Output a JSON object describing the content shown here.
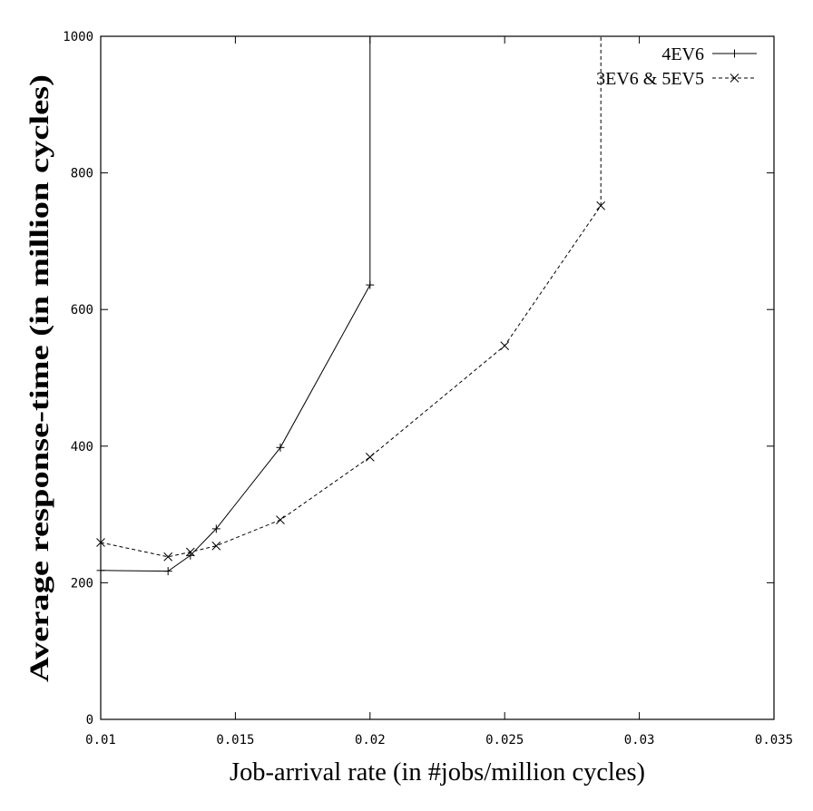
{
  "chart_data": {
    "type": "line",
    "title": "",
    "xlabel": "Job-arrival rate (in #jobs/million cycles)",
    "ylabel": "Average response-time (in million cycles)",
    "xlim": [
      0.01,
      0.035
    ],
    "ylim": [
      0,
      1000
    ],
    "xticks": [
      0.01,
      0.015,
      0.02,
      0.025,
      0.03,
      0.035
    ],
    "xtick_labels": [
      "0.01",
      "0.015",
      "0.02",
      "0.025",
      "0.03",
      "0.035"
    ],
    "yticks": [
      0,
      200,
      400,
      600,
      800,
      1000
    ],
    "ytick_labels": [
      "0",
      "200",
      "400",
      "600",
      "800",
      "1000"
    ],
    "grid": false,
    "legend_position": "top-right",
    "series": [
      {
        "name": "4EV6",
        "marker": "plus",
        "line_style": "solid",
        "color": "#000000",
        "x": [
          0.01,
          0.0125,
          0.01333,
          0.01429,
          0.01667,
          0.02,
          0.02
        ],
        "y": [
          218,
          217,
          240,
          279,
          398,
          636,
          1000
        ]
      },
      {
        "name": "3EV6 & 5EV5",
        "marker": "cross",
        "line_style": "dashed",
        "color": "#000000",
        "x": [
          0.01,
          0.0125,
          0.01333,
          0.01429,
          0.01667,
          0.02,
          0.025,
          0.02857,
          0.02857
        ],
        "y": [
          259,
          238,
          245,
          254,
          292,
          384,
          547,
          752,
          1000
        ]
      }
    ]
  }
}
